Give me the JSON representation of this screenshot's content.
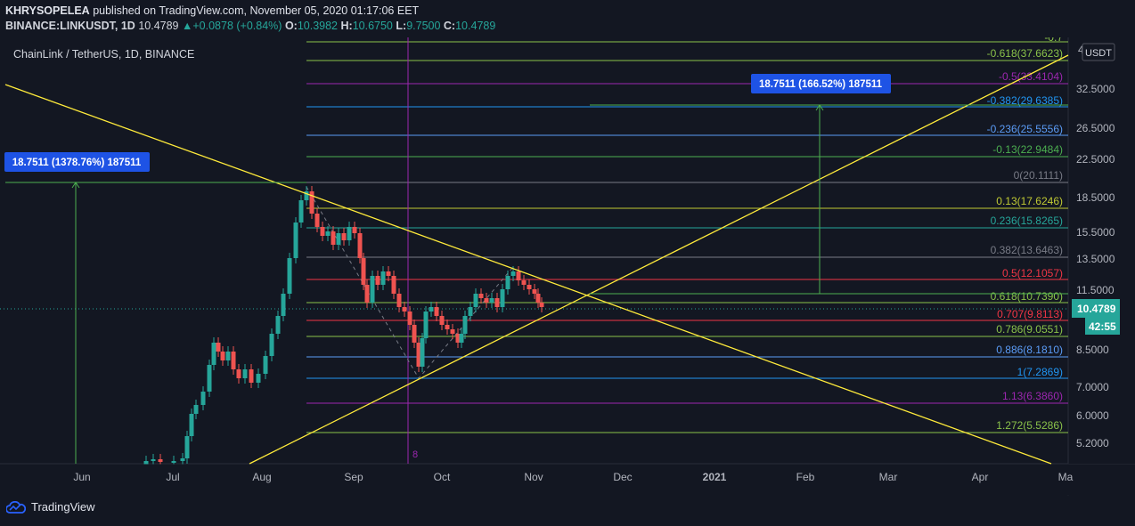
{
  "header": {
    "author": "KHRYSOPELEA",
    "published": "published on TradingView.com, November 05, 2020 01:17:06 EET",
    "symbol": "BINANCE:LINKUSDT, 1D",
    "last": "10.4789",
    "change": "+0.0878 (+0.84%)",
    "o_label": "O:",
    "o_value": "10.3982",
    "h_label": "H:",
    "h_value": "10.6750",
    "l_label": "L:",
    "l_value": "9.7500",
    "c_label": "C:",
    "c_value": "10.4789"
  },
  "chart": {
    "title": "ChainLink / TetherUS, 1D, BINANCE",
    "currency": "USDT",
    "price_scale": [
      "32.5000",
      "26.5000",
      "22.5000",
      "18.5000",
      "15.5000",
      "13.5000",
      "11.5000",
      "8.5000",
      "7.0000",
      "6.0000",
      "5.2000"
    ],
    "top_scale_fragment": "4",
    "current_price": "10.4789",
    "countdown": "42:55",
    "time_scale": [
      "Jun",
      "Jul",
      "Aug",
      "Sep",
      "Oct",
      "Nov",
      "Dec",
      "2021",
      "Feb",
      "Mar",
      "Apr",
      "Ma"
    ],
    "vline_label": "8",
    "fib_levels": [
      {
        "label": "-0.618(37.6623)",
        "color": "#8bc34a"
      },
      {
        "label": "-0.5(33.4104)",
        "color": "#9c27b0"
      },
      {
        "label": "-0.382(29.6385)",
        "color": "#2196f3"
      },
      {
        "label": "-0.236(25.5556)",
        "color": "#5b9cf6"
      },
      {
        "label": "-0.13(22.9484)",
        "color": "#4caf50"
      },
      {
        "label": "0(20.1111)",
        "color": "#787b86"
      },
      {
        "label": "0.13(17.6246)",
        "color": "#c0ca33"
      },
      {
        "label": "0.236(15.8265)",
        "color": "#26a69a"
      },
      {
        "label": "0.382(13.6463)",
        "color": "#787b86"
      },
      {
        "label": "0.5(12.1057)",
        "color": "#f23645"
      },
      {
        "label": "0.618(10.7390)",
        "color": "#8bc34a"
      },
      {
        "label": "0.707(9.8113)",
        "color": "#f23645"
      },
      {
        "label": "0.786(9.0551)",
        "color": "#8bc34a"
      },
      {
        "label": "0.886(8.1810)",
        "color": "#5b9cf6"
      },
      {
        "label": "1(7.2869)",
        "color": "#2196f3"
      },
      {
        "label": "1.13(6.3860)",
        "color": "#9c27b0"
      },
      {
        "label": "1.272(5.5286)",
        "color": "#8bc34a"
      }
    ],
    "measure_left": "18.7511 (1378.76%) 187511",
    "measure_right": "18.7511 (166.52%) 187511"
  },
  "footer": {
    "brand": "TradingView"
  },
  "colors": {
    "bg": "#131722",
    "up": "#26a69a",
    "down": "#ef5350",
    "trend": "#ffeb3b",
    "measure": "#1e53e5"
  }
}
